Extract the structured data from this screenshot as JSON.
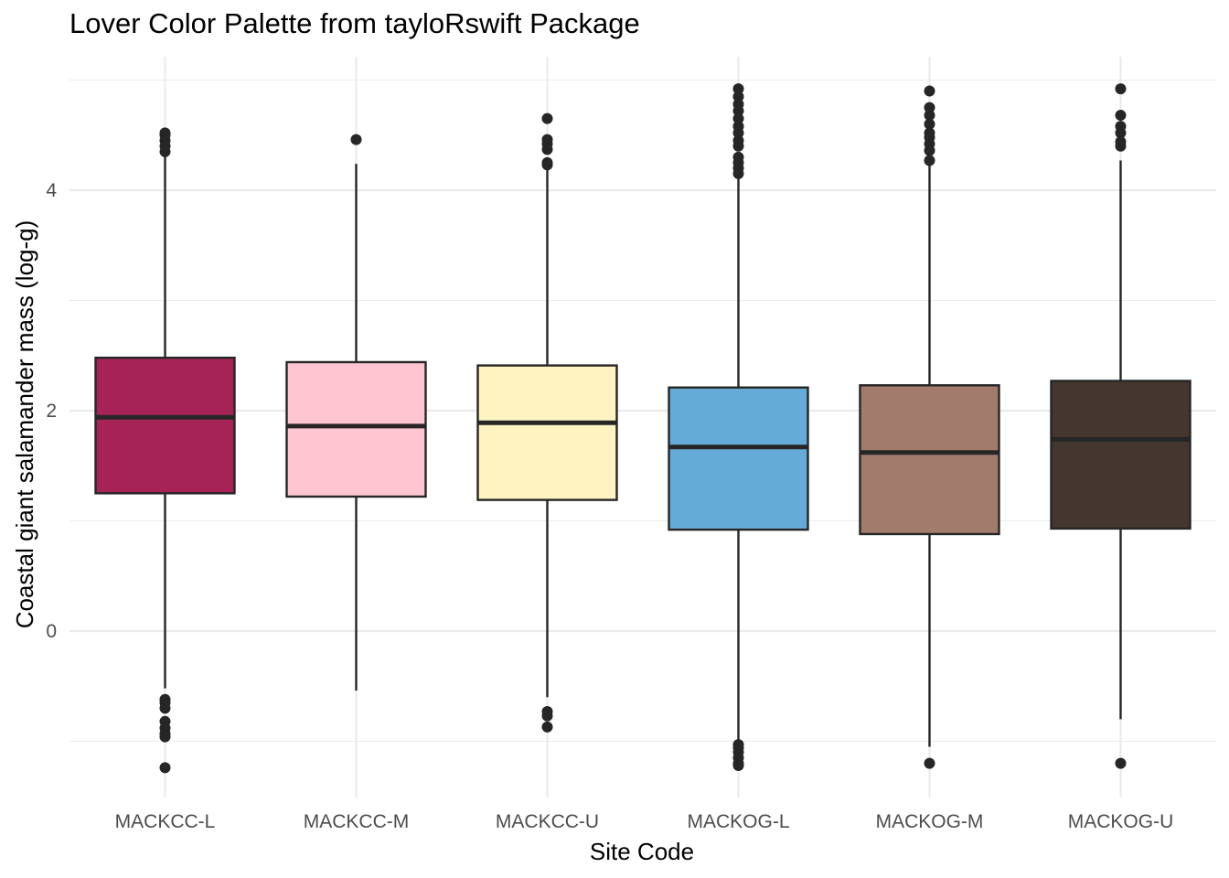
{
  "chart_data": {
    "type": "boxplot",
    "title": "Lover Color Palette from tayloRswift Package",
    "xlabel": "Site Code",
    "ylabel": "Coastal giant salamander mass (log-g)",
    "ylim": [
      -1.5,
      5.2
    ],
    "y_ticks": [
      0,
      2,
      4
    ],
    "grid": true,
    "categories": [
      "MACKCC-L",
      "MACKCC-M",
      "MACKCC-U",
      "MACKOG-L",
      "MACKOG-M",
      "MACKOG-U"
    ],
    "boxes": [
      {
        "site": "MACKCC-L",
        "color": "#A62357",
        "q1": 1.25,
        "median": 1.94,
        "q3": 2.48,
        "whisker_low": -0.52,
        "whisker_high": 4.32,
        "outliers": [
          4.52,
          4.5,
          4.45,
          4.4,
          4.35,
          -0.62,
          -0.65,
          -0.7,
          -0.82,
          -0.88,
          -0.93,
          -0.96,
          -1.24
        ]
      },
      {
        "site": "MACKCC-M",
        "color": "#FFC5D0",
        "q1": 1.22,
        "median": 1.86,
        "q3": 2.44,
        "whisker_low": -0.54,
        "whisker_high": 4.24,
        "outliers": [
          4.46
        ]
      },
      {
        "site": "MACKCC-U",
        "color": "#FEF3C1",
        "q1": 1.19,
        "median": 1.89,
        "q3": 2.41,
        "whisker_low": -0.6,
        "whisker_high": 4.22,
        "outliers": [
          4.65,
          4.46,
          4.42,
          4.37,
          4.25,
          4.23,
          -0.73,
          -0.77,
          -0.87
        ]
      },
      {
        "site": "MACKOG-L",
        "color": "#64ABD8",
        "q1": 0.92,
        "median": 1.67,
        "q3": 2.21,
        "whisker_low": -1.02,
        "whisker_high": 4.12,
        "outliers": [
          4.92,
          4.85,
          4.78,
          4.72,
          4.65,
          4.58,
          4.52,
          4.45,
          4.4,
          4.3,
          4.25,
          4.2,
          4.15,
          -1.03,
          -1.06,
          -1.1,
          -1.15,
          -1.2,
          -1.22
        ]
      },
      {
        "site": "MACKOG-M",
        "color": "#A27B6D",
        "q1": 0.88,
        "median": 1.62,
        "q3": 2.23,
        "whisker_low": -1.05,
        "whisker_high": 4.25,
        "outliers": [
          4.9,
          4.75,
          4.68,
          4.6,
          4.52,
          4.48,
          4.42,
          4.36,
          4.27,
          -1.2
        ]
      },
      {
        "site": "MACKOG-U",
        "color": "#433730",
        "q1": 0.93,
        "median": 1.74,
        "q3": 2.27,
        "whisker_low": -0.8,
        "whisker_high": 4.27,
        "outliers": [
          4.92,
          4.68,
          4.58,
          4.52,
          4.44,
          4.4,
          -1.2
        ]
      }
    ]
  }
}
